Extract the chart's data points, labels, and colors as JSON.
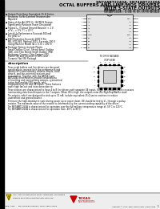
{
  "title_line1": "SN74ABT2240A, SN74ABT2240A",
  "title_line2": "OCTAL BUFFERS AND LINE/MOS DRIVERS",
  "title_line3": "WITH 3-STATE OUTPUTS",
  "subtitle1": "SN74ABT2240A ... D, DW, FK, NT, OR PW PACKAGE",
  "subtitle2": "SN74ABT2240A ... D, DW, FK, NT, OR PW PACKAGE",
  "features": [
    "Output Ports Have Equivalent 25-Ω Series\nResistors, So No External Resistors Are\nRequired",
    "State-of-the-Art EPIC-II™ BiCMOS Design\nSignificantly Reduces Power Dissipation",
    "Typical Iₒₓ (Output Ground Bounce) < 1 V\nat Vₒₓ = 0 V, Tₐ = 25°C",
    "Latch-Up Performance Exceeds 500 mA\nPer JESD 17",
    "ESD Protection Exceeds 2000 V Per\nMIL-STD-883, Method 3015; Exceeds 200 V\nUsing Machine Model (A = 0, B = 200 V)",
    "Package Options Include Plastic\nSmall Outline (D or), Shrink Small Outline\n(DB), and Thin Shrink Small Outline (PW)\nPackages, Ceramic Chip Carriers (FK),\nPlastic (N) and Ceramic (J) DIPs, and\nCeramic Flat (W) Package"
  ],
  "description_title": "description",
  "desc_para1": [
    "These octal buffers and line drivers are designed",
    "specifically to improve both the performance and",
    "density of 3-state-memory address drivers, clock",
    "drivers, and bus-oriented receivers and",
    "transmitters. Together with the ABT241 and",
    "ABT244A, these devices provide combinations",
    "of inverting and noninverting outputs, symmetrical",
    "active high enable (OE) inputs, and",
    "complementary OE and OE inputs. These features",
    "make high fan-out and interconnection to"
  ],
  "desc_para2": [
    "These devices are characterized to have 4 to 8 line drivers with separate OE inputs. When OE is low, the device passes",
    "noninverting data from A inputs to the Y outputs. When OE is high, the outputs enter the high-impedance state."
  ],
  "desc_para3": [
    "The outputs, which are designed to sink up to 32 mA, include equivalent 25-Ω series resistors to reduce",
    "undershoot and ground bounce."
  ],
  "desc_para4": [
    "To ensure the high-impedance state during power up or power down, OE should be tied to Vₒₓ through a pullup",
    "resistor. The maximum value of the resistor is determined by the current-sinking capability of the driver."
  ],
  "desc_para5": [
    "The SN74ABT2240A is characterized for operation over the full military temperature range of -55°C to 125°C.",
    "The SN74ABT2240A is characterized for operation from -40°C to 85°C."
  ],
  "footer_trademark": "CPC, 1994 a trademark of Texas Instruments Incorporated",
  "footer_copyright": "Copyright © 1994, Texas Instruments Incorporated",
  "footer_url": "www.ti.com",
  "footer_address": "Post Office Box 655303 • Dallas, Texas 75265",
  "page_number": "1",
  "bg_color": "#ffffff",
  "header_bg": "#c8c8c8",
  "left_bar_color": "#000000",
  "text_color": "#000000",
  "footer_bg": "#d8d8d8",
  "ti_logo_color": "#cc0000"
}
